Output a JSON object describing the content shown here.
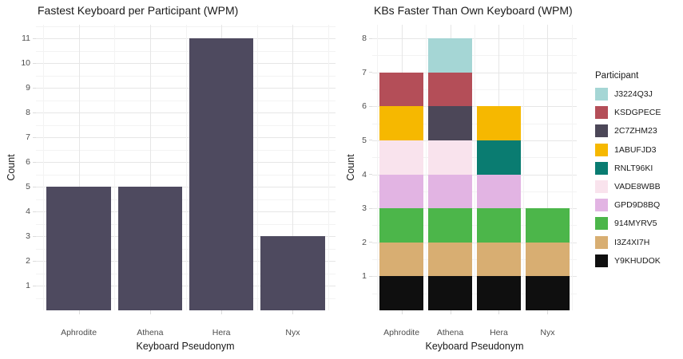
{
  "figure": {
    "background": "#FFFFFF"
  },
  "style": {
    "title_color": "#1A1A1A",
    "axis_title_color": "#1A1A1A",
    "tick_label_color": "#4D4D4D",
    "tick_mark_color": "#DCDCDC",
    "legend_text_color": "#1A1A1A"
  },
  "chart_data": [
    {
      "type": "bar",
      "title": "Fastest Keyboard per Participant (WPM)",
      "xlabel": "Keyboard Pseudonym",
      "ylabel": "Count",
      "categories": [
        "Aphrodite",
        "Athena",
        "Hera",
        "Nyx"
      ],
      "values": [
        5,
        5,
        11,
        3
      ],
      "bar_color": "#4E4A5F",
      "ylim": [
        0,
        11.55
      ],
      "yticks": [
        1,
        2,
        3,
        4,
        5,
        6,
        7,
        8,
        9,
        10,
        11
      ],
      "grid": {
        "major": "#E6E6E6",
        "minor": "#F3F3F3",
        "show_minor": true
      },
      "legend": null
    },
    {
      "type": "stacked-bar",
      "title": "KBs Faster Than Own Keyboard (WPM)",
      "xlabel": "Keyboard Pseudonym",
      "ylabel": "Count",
      "categories": [
        "Aphrodite",
        "Athena",
        "Hera",
        "Nyx"
      ],
      "series": [
        {
          "name": "Y9KHUDOK",
          "color": "#0F0F0F",
          "values": [
            1,
            1,
            1,
            1
          ]
        },
        {
          "name": "I3Z4XI7H",
          "color": "#D8AE72",
          "values": [
            1,
            1,
            1,
            1
          ]
        },
        {
          "name": "914MYRV5",
          "color": "#4CB64A",
          "values": [
            1,
            1,
            1,
            1
          ]
        },
        {
          "name": "GPD9D8BQ",
          "color": "#E2B4E3",
          "values": [
            1,
            1,
            1,
            0
          ]
        },
        {
          "name": "VADE8WBB",
          "color": "#F9E3ED",
          "values": [
            1,
            1,
            0,
            0
          ]
        },
        {
          "name": "RNLT96KI",
          "color": "#0A7C71",
          "values": [
            0,
            0,
            1,
            0
          ]
        },
        {
          "name": "1ABUFJD3",
          "color": "#F6B800",
          "values": [
            1,
            0,
            1,
            0
          ]
        },
        {
          "name": "2C7ZHM23",
          "color": "#4C4758",
          "values": [
            0,
            1,
            0,
            0
          ]
        },
        {
          "name": "KSDGPECE",
          "color": "#B44E58",
          "values": [
            1,
            1,
            0,
            0
          ]
        },
        {
          "name": "J3224Q3J",
          "color": "#A5D6D5",
          "values": [
            0,
            1,
            0,
            0
          ]
        }
      ],
      "totals": [
        7,
        8,
        6,
        3
      ],
      "ylim": [
        0,
        8.4
      ],
      "yticks": [
        1,
        2,
        3,
        4,
        5,
        6,
        7,
        8
      ],
      "grid": {
        "major": "#E6E6E6",
        "minor": "#F3F3F3",
        "show_minor": true
      },
      "legend": {
        "title": "Participant",
        "position": "right",
        "order": [
          "J3224Q3J",
          "KSDGPECE",
          "2C7ZHM23",
          "1ABUFJD3",
          "RNLT96KI",
          "VADE8WBB",
          "GPD9D8BQ",
          "914MYRV5",
          "I3Z4XI7H",
          "Y9KHUDOK"
        ]
      }
    }
  ]
}
